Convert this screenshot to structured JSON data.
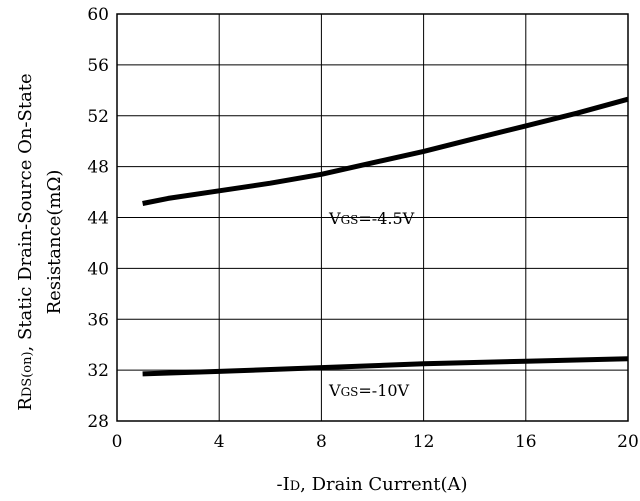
{
  "chart_data": {
    "type": "line",
    "xlabel": {
      "prefix": "-I",
      "sub": "D",
      "suffix": ", Drain Current(A)"
    },
    "ylabel": {
      "line1_prefix": "R",
      "line1_sub": "DS(on)",
      "line1_suffix": ", Static Drain-Source On-State",
      "line2": "Resistance(mΩ)"
    },
    "xlim": [
      0,
      20
    ],
    "ylim": [
      28,
      60
    ],
    "xticks": [
      0,
      4,
      8,
      12,
      16,
      20
    ],
    "yticks": [
      28,
      32,
      36,
      40,
      44,
      48,
      52,
      56,
      60
    ],
    "grid": true,
    "series": [
      {
        "label_prefix": "V",
        "label_sub": "GS",
        "label_suffix": "=-4.5V",
        "x": [
          1,
          2,
          4,
          6,
          8,
          10,
          12,
          14,
          16,
          18,
          20
        ],
        "y": [
          45.1,
          45.5,
          46.1,
          46.7,
          47.4,
          48.3,
          49.2,
          50.2,
          51.2,
          52.2,
          53.3
        ]
      },
      {
        "label_prefix": "V",
        "label_sub": "GS",
        "label_suffix": "=-10V",
        "x": [
          1,
          4,
          8,
          12,
          16,
          20
        ],
        "y": [
          31.7,
          31.9,
          32.2,
          32.5,
          32.7,
          32.9
        ]
      }
    ]
  }
}
